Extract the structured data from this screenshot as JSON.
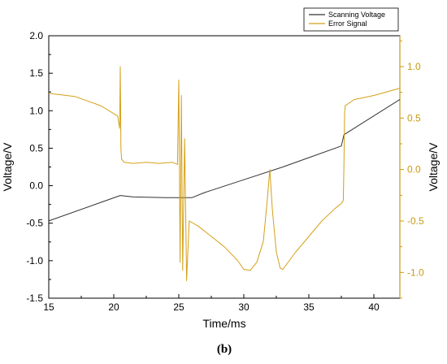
{
  "chart_data": {
    "type": "line",
    "xlabel": "Time/ms",
    "ylabel_left": "Voltage/V",
    "ylabel_right": "Voltage/V",
    "caption": "(b)",
    "xlim": [
      15,
      42
    ],
    "ylim_left": [
      -1.5,
      2.0
    ],
    "ylim_right": [
      -1.25,
      1.3
    ],
    "x_ticks": [
      15,
      20,
      25,
      30,
      35,
      40
    ],
    "y_ticks_left": [
      -1.5,
      -1.0,
      -0.5,
      0.0,
      0.5,
      1.0,
      1.5,
      2.0
    ],
    "y_ticks_right": [
      -1.0,
      -0.5,
      0.0,
      0.5,
      1.0
    ],
    "legend_position": "top-right",
    "grid": false,
    "series": [
      {
        "name": "Scanning Voltage",
        "axis": "left",
        "color": "#333333",
        "x": [
          15,
          20.5,
          21.5,
          24,
          26,
          27,
          30,
          33,
          37.5,
          37.7,
          42
        ],
        "y": [
          -0.47,
          -0.13,
          -0.15,
          -0.16,
          -0.16,
          -0.09,
          0.08,
          0.25,
          0.53,
          0.68,
          1.15
        ]
      },
      {
        "name": "Error Signal",
        "axis": "right",
        "color": "#d4a017",
        "x": [
          15,
          17,
          19,
          20.3,
          20.45,
          20.5,
          20.55,
          20.6,
          20.8,
          21.5,
          22.5,
          23.5,
          24.5,
          24.9,
          25.0,
          25.1,
          25.2,
          25.3,
          25.45,
          25.6,
          25.8,
          26.5,
          27.5,
          28.5,
          29.5,
          30.0,
          30.5,
          31.0,
          31.5,
          31.8,
          32.0,
          32.2,
          32.5,
          32.8,
          33.0,
          34.0,
          35.0,
          36.0,
          37.0,
          37.5,
          37.65,
          37.7,
          37.75,
          37.8,
          38.5,
          40,
          42
        ],
        "y": [
          0.74,
          0.71,
          0.62,
          0.52,
          0.4,
          1.0,
          0.2,
          0.1,
          0.07,
          0.06,
          0.07,
          0.06,
          0.07,
          0.05,
          0.87,
          -0.9,
          0.72,
          -0.98,
          0.3,
          -1.08,
          -0.5,
          -0.55,
          -0.65,
          -0.75,
          -0.88,
          -0.97,
          -0.98,
          -0.9,
          -0.7,
          -0.3,
          0.0,
          -0.4,
          -0.8,
          -0.96,
          -0.97,
          -0.8,
          -0.65,
          -0.5,
          -0.38,
          -0.33,
          -0.3,
          0.05,
          0.55,
          0.62,
          0.68,
          0.72,
          0.79
        ]
      }
    ]
  }
}
